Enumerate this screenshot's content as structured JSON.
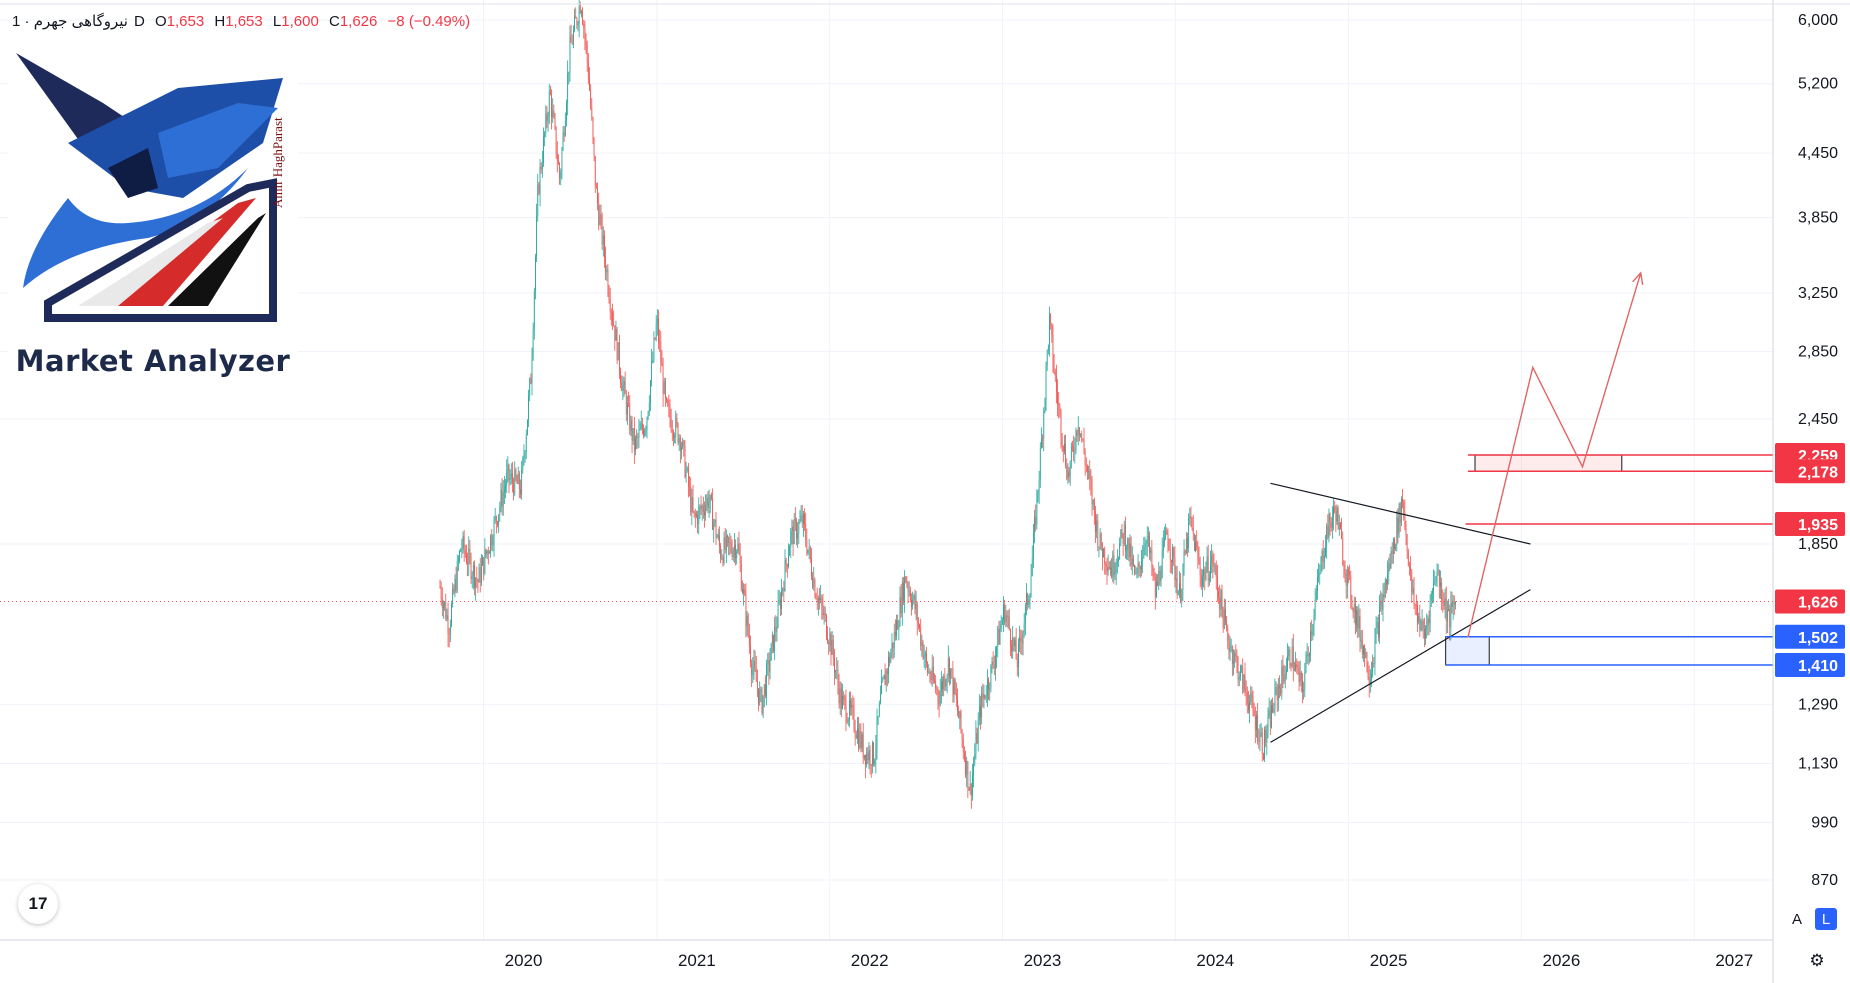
{
  "legend": {
    "symbol": "نیروگاهی جهرم",
    "interval": "· 1D",
    "open_key": "O",
    "open": "1,653",
    "high_key": "H",
    "high": "1,653",
    "low_key": "L",
    "low": "1,600",
    "close_key": "C",
    "close": "1,626",
    "change": "−8 (−0.49%)"
  },
  "logo": {
    "text": "Market Analyzer",
    "signature": "Amir HaghParast"
  },
  "tv_logo": {
    "text": "17",
    "icon": "tradingview-logo-icon"
  },
  "controls": {
    "auto_label": "A",
    "log_label": "L",
    "settings_icon": "gear-icon"
  },
  "colors": {
    "up": "#26a69a",
    "down": "#ef5350",
    "resistance": "#f23645",
    "support": "#2962ff",
    "trendline": "#131722",
    "projection": "#e06666",
    "grid": "#f0f3fa"
  },
  "chart_data": {
    "type": "candlestick",
    "scale": "log",
    "x_ticks": [
      "2020",
      "2021",
      "2022",
      "2023",
      "2024",
      "2025",
      "2026",
      "2027"
    ],
    "y_ticks": [
      "6,000",
      "5,200",
      "4,450",
      "3,850",
      "3,250",
      "2,850",
      "2,450",
      "1,850",
      "1,290",
      "1,130",
      "990",
      "870"
    ],
    "price_markers": [
      {
        "label": "2,259",
        "value": 2259,
        "color": "#f23645"
      },
      {
        "label": "2,178",
        "value": 2178,
        "color": "#f23645"
      },
      {
        "label": "1,935",
        "value": 1935,
        "color": "#f23645"
      },
      {
        "label": "1,626",
        "value": 1626,
        "color": "#f23645"
      },
      {
        "label": "1,502",
        "value": 1502,
        "color": "#2962ff"
      },
      {
        "label": "1,410",
        "value": 1410,
        "color": "#2962ff"
      }
    ],
    "current_price": 1626,
    "series": [
      {
        "values": [
          [
            "2019-10-01",
            1680
          ],
          [
            "2019-10-20",
            1540
          ],
          [
            "2019-11-15",
            1850
          ],
          [
            "2019-12-20",
            1700
          ],
          [
            "2020-01-20",
            1900
          ],
          [
            "2020-02-20",
            2150
          ],
          [
            "2020-03-20",
            2100
          ],
          [
            "2020-04-10",
            2700
          ],
          [
            "2020-04-25",
            4100
          ],
          [
            "2020-05-20",
            5100
          ],
          [
            "2020-06-10",
            4200
          ],
          [
            "2020-07-01",
            5600
          ],
          [
            "2020-07-25",
            6300
          ],
          [
            "2020-08-10",
            5300
          ],
          [
            "2020-08-25",
            4100
          ],
          [
            "2020-09-25",
            3200
          ],
          [
            "2020-10-20",
            2650
          ],
          [
            "2020-11-15",
            2300
          ],
          [
            "2020-12-10",
            2450
          ],
          [
            "2021-01-01",
            3050
          ],
          [
            "2021-01-20",
            2500
          ],
          [
            "2021-02-20",
            2350
          ],
          [
            "2021-03-20",
            1950
          ],
          [
            "2021-04-20",
            2050
          ],
          [
            "2021-05-15",
            1820
          ],
          [
            "2021-06-20",
            1850
          ],
          [
            "2021-07-20",
            1420
          ],
          [
            "2021-08-10",
            1290
          ],
          [
            "2021-09-10",
            1540
          ],
          [
            "2021-10-10",
            1880
          ],
          [
            "2021-11-05",
            1950
          ],
          [
            "2021-12-01",
            1680
          ],
          [
            "2022-01-01",
            1500
          ],
          [
            "2022-01-25",
            1300
          ],
          [
            "2022-02-20",
            1250
          ],
          [
            "2022-03-15",
            1160
          ],
          [
            "2022-04-05",
            1150
          ],
          [
            "2022-04-20",
            1320
          ],
          [
            "2022-05-20",
            1520
          ],
          [
            "2022-06-10",
            1720
          ],
          [
            "2022-07-01",
            1600
          ],
          [
            "2022-07-25",
            1400
          ],
          [
            "2022-08-20",
            1320
          ],
          [
            "2022-09-10",
            1420
          ],
          [
            "2022-10-01",
            1250
          ],
          [
            "2022-10-25",
            1060
          ],
          [
            "2022-11-15",
            1280
          ],
          [
            "2022-12-10",
            1400
          ],
          [
            "2023-01-05",
            1600
          ],
          [
            "2023-02-01",
            1420
          ],
          [
            "2023-03-01",
            1700
          ],
          [
            "2023-03-25",
            2350
          ],
          [
            "2023-04-10",
            3050
          ],
          [
            "2023-04-25",
            2600
          ],
          [
            "2023-05-20",
            2150
          ],
          [
            "2023-06-10",
            2450
          ],
          [
            "2023-07-01",
            2150
          ],
          [
            "2023-07-25",
            1850
          ],
          [
            "2023-08-20",
            1750
          ],
          [
            "2023-09-15",
            1900
          ],
          [
            "2023-10-10",
            1700
          ],
          [
            "2023-11-01",
            1900
          ],
          [
            "2023-11-20",
            1650
          ],
          [
            "2023-12-15",
            1900
          ],
          [
            "2024-01-10",
            1650
          ],
          [
            "2024-02-01",
            1950
          ],
          [
            "2024-02-25",
            1720
          ],
          [
            "2024-03-20",
            1780
          ],
          [
            "2024-04-20",
            1500
          ],
          [
            "2024-05-20",
            1370
          ],
          [
            "2024-06-15",
            1260
          ],
          [
            "2024-07-05",
            1175
          ],
          [
            "2024-08-01",
            1320
          ],
          [
            "2024-09-01",
            1450
          ],
          [
            "2024-09-25",
            1330
          ],
          [
            "2024-10-20",
            1600
          ],
          [
            "2024-11-15",
            1900
          ],
          [
            "2024-12-05",
            2000
          ],
          [
            "2024-12-25",
            1750
          ],
          [
            "2025-01-20",
            1550
          ],
          [
            "2025-02-15",
            1380
          ],
          [
            "2025-03-10",
            1600
          ],
          [
            "2025-04-01",
            1800
          ],
          [
            "2025-04-25",
            2050
          ],
          [
            "2025-05-15",
            1650
          ],
          [
            "2025-06-10",
            1500
          ],
          [
            "2025-07-05",
            1750
          ],
          [
            "2025-08-01",
            1560
          ],
          [
            "2025-08-15",
            1626
          ]
        ]
      }
    ],
    "annotations": {
      "trendlines": [
        {
          "from": [
            "2024-07-20",
            2120
          ],
          "to": [
            "2026-01-20",
            1850
          ]
        },
        {
          "from": [
            "2024-07-20",
            1185
          ],
          "to": [
            "2026-01-20",
            1670
          ]
        }
      ],
      "horizontal_lines": [
        {
          "from_date": "2025-09-10",
          "value": 2259,
          "color": "#f23645"
        },
        {
          "from_date": "2025-09-10",
          "value": 2178,
          "color": "#f23645"
        },
        {
          "from_date": "2025-09-05",
          "value": 1935,
          "color": "#f23645"
        },
        {
          "from_date": "2025-07-25",
          "value": 1502,
          "color": "#2962ff"
        },
        {
          "from_date": "2025-07-25",
          "value": 1410,
          "color": "#2962ff"
        }
      ],
      "zones": [
        {
          "from": [
            "2025-09-25",
            2259
          ],
          "to": [
            "2026-08-01",
            2178
          ],
          "color": "#f23645"
        },
        {
          "from": [
            "2025-07-25",
            1502
          ],
          "to": [
            "2025-10-25",
            1410
          ],
          "color": "#2962ff"
        }
      ],
      "projection": [
        [
          "2025-09-10",
          1500
        ],
        [
          "2026-01-25",
          2750
        ],
        [
          "2026-05-10",
          2200
        ],
        [
          "2026-09-10",
          3400
        ]
      ]
    }
  }
}
